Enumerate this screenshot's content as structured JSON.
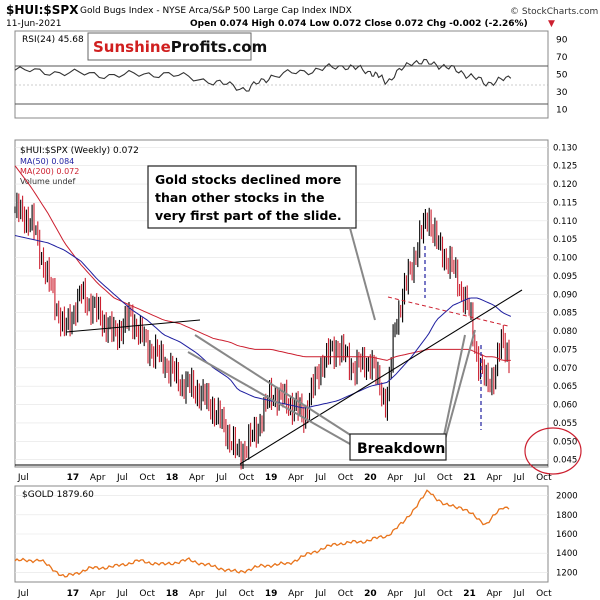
{
  "header": {
    "symbol": "$HUI:$SPX",
    "description": "Gold Bugs Index - NYSE Arca/S&P 500 Large Cap Index  INDX",
    "date": "11-Jun-2021",
    "ohlc": "Open 0.074  High 0.074  Low 0.072  Close 0.072  Chg -0.002 (-2.26%)",
    "watermark": "© StockCharts.com",
    "chg_marker": "▼"
  },
  "logo": {
    "part1": "Sunshine",
    "part2": "Profits.com"
  },
  "rsi_panel": {
    "label": "RSI(24) 45.68",
    "ticks": [
      "90",
      "70",
      "50",
      "30",
      "10"
    ],
    "overbought": 70,
    "oversold": 30,
    "mid": 50
  },
  "main_panel": {
    "legend": {
      "symbol": "$HUI:$SPX (Weekly) 0.072",
      "ma50": "MA(50) 0.084",
      "ma200": "MA(200) 0.072",
      "volume": "Volume undef"
    },
    "y_ticks": [
      "0.130",
      "0.125",
      "0.120",
      "0.115",
      "0.110",
      "0.105",
      "0.100",
      "0.095",
      "0.090",
      "0.085",
      "0.080",
      "0.075",
      "0.070",
      "0.065",
      "0.060",
      "0.055",
      "0.050",
      "0.045"
    ]
  },
  "annotations": {
    "note_line1": "Gold stocks declined more",
    "note_line2": "than other stocks in the",
    "note_line3": "very first part of the slide.",
    "breakdown": "Breakdown"
  },
  "gold_panel": {
    "label": "$GOLD 1879.60",
    "y_ticks": [
      "2000",
      "1800",
      "1600",
      "1400",
      "1200"
    ]
  },
  "x_axis": {
    "labels": [
      "Jul",
      "17",
      "Apr",
      "Jul",
      "Oct",
      "18",
      "Apr",
      "Jul",
      "Oct",
      "19",
      "Apr",
      "Jul",
      "Oct",
      "20",
      "Apr",
      "Jul",
      "Oct",
      "21",
      "Apr",
      "Jul",
      "Oct"
    ]
  },
  "colors": {
    "price": "#000000",
    "ma50": "#1f1fa0",
    "ma200": "#cc1f2f",
    "gold": "#e8741c",
    "down_bar": "#cc1f2f",
    "up_bar": "#000000",
    "circle": "#cc1f2f",
    "logo_red": "#d01f1f",
    "trendline_dashed": "#cc1f2f",
    "vertical_dashed": "#1f1fa0"
  },
  "chart_data": [
    {
      "type": "line",
      "title": "RSI(24)",
      "ylim": [
        0,
        100
      ],
      "x": [
        "2016-06",
        "2016-12",
        "2017-06",
        "2017-12",
        "2018-06",
        "2018-10",
        "2019-01",
        "2019-06",
        "2019-10",
        "2020-01",
        "2020-03",
        "2020-06",
        "2020-09",
        "2020-12",
        "2021-03",
        "2021-06"
      ],
      "values": [
        55,
        52,
        49,
        51,
        42,
        33,
        48,
        55,
        60,
        53,
        42,
        65,
        62,
        53,
        40,
        45.68
      ]
    },
    {
      "type": "line",
      "title": "$HUI:$SPX (Weekly)",
      "ylim": [
        0.043,
        0.132
      ],
      "x": [
        "2016-06",
        "2016-08",
        "2016-10",
        "2016-12",
        "2017-02",
        "2017-04",
        "2017-06",
        "2017-08",
        "2017-10",
        "2017-12",
        "2018-02",
        "2018-04",
        "2018-06",
        "2018-08",
        "2018-09",
        "2018-11",
        "2019-01",
        "2019-03",
        "2019-05",
        "2019-07",
        "2019-09",
        "2019-11",
        "2020-01",
        "2020-03",
        "2020-04",
        "2020-06",
        "2020-08",
        "2020-09",
        "2020-11",
        "2021-01",
        "2021-02",
        "2021-03",
        "2021-04",
        "2021-05",
        "2021-06"
      ],
      "series": [
        {
          "name": "$HUI:$SPX (Weekly) 0.072",
          "values": [
            0.113,
            0.11,
            0.094,
            0.08,
            0.09,
            0.085,
            0.079,
            0.084,
            0.076,
            0.072,
            0.066,
            0.064,
            0.059,
            0.051,
            0.046,
            0.052,
            0.063,
            0.061,
            0.057,
            0.071,
            0.076,
            0.07,
            0.072,
            0.06,
            0.082,
            0.098,
            0.112,
            0.104,
            0.097,
            0.085,
            0.072,
            0.066,
            0.068,
            0.078,
            0.072
          ]
        },
        {
          "name": "MA(50) 0.084",
          "values": [
            0.106,
            0.105,
            0.104,
            0.102,
            0.099,
            0.094,
            0.09,
            0.086,
            0.083,
            0.079,
            0.077,
            0.074,
            0.07,
            0.067,
            0.064,
            0.062,
            0.061,
            0.06,
            0.059,
            0.06,
            0.061,
            0.063,
            0.065,
            0.066,
            0.068,
            0.073,
            0.079,
            0.083,
            0.087,
            0.089,
            0.089,
            0.088,
            0.087,
            0.085,
            0.084
          ]
        },
        {
          "name": "MA(200) 0.072",
          "values": [
            0.125,
            0.119,
            0.112,
            0.104,
            0.098,
            0.093,
            0.089,
            0.087,
            0.085,
            0.083,
            0.082,
            0.08,
            0.078,
            0.077,
            0.076,
            0.075,
            0.075,
            0.074,
            0.073,
            0.073,
            0.073,
            0.073,
            0.073,
            0.072,
            0.073,
            0.074,
            0.075,
            0.075,
            0.075,
            0.075,
            0.074,
            0.073,
            0.073,
            0.072,
            0.072
          ]
        }
      ]
    },
    {
      "type": "line",
      "title": "$GOLD",
      "ylim": [
        1100,
        2100
      ],
      "x": [
        "2016-06",
        "2016-09",
        "2016-12",
        "2017-03",
        "2017-06",
        "2017-09",
        "2017-12",
        "2018-03",
        "2018-06",
        "2018-09",
        "2018-12",
        "2019-03",
        "2019-06",
        "2019-09",
        "2019-12",
        "2020-03",
        "2020-05",
        "2020-08",
        "2020-10",
        "2020-12",
        "2021-03",
        "2021-05",
        "2021-06"
      ],
      "values": [
        1320,
        1330,
        1150,
        1240,
        1260,
        1320,
        1280,
        1330,
        1260,
        1200,
        1270,
        1290,
        1410,
        1500,
        1520,
        1580,
        1720,
        2050,
        1900,
        1880,
        1700,
        1880,
        1880
      ]
    }
  ]
}
